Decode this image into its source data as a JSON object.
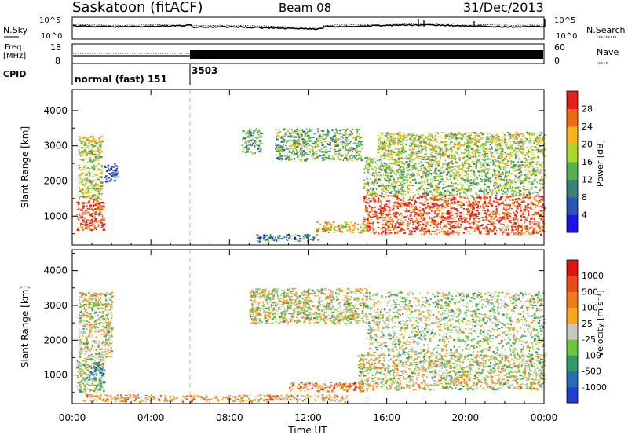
{
  "header": {
    "station": "Saskatoon (fitACF)",
    "beam": "Beam 08",
    "date": "31/Dec/2013"
  },
  "top_panels": {
    "nsky_label": "N.Sky",
    "nsky_ticks": [
      "10^5",
      "10^0"
    ],
    "nsearch_label": "N.Search",
    "nsearch_ticks": [
      "10^5",
      "10^0"
    ],
    "freq_label_1": "Freq.",
    "freq_label_2": "[MHz]",
    "freq_ticks": [
      "18",
      "8"
    ],
    "nave_label": "Nave",
    "nave_ticks": [
      "60",
      "0"
    ],
    "cpid_label": "CPID",
    "cpid_segments": [
      {
        "label": "normal (fast) 151",
        "start_hour": 0
      },
      {
        "label": "3503",
        "start_hour": 6
      }
    ]
  },
  "chart_data": [
    {
      "type": "heatmap",
      "name": "power",
      "ylabel": "Slant Range [km]",
      "xlabel": "Time UT",
      "x_ticks": [
        "00:00",
        "04:00",
        "08:00",
        "12:00",
        "16:00",
        "20:00",
        "00:00"
      ],
      "xlim_hours": [
        0,
        24
      ],
      "y_ticks": [
        "1000",
        "2000",
        "3000",
        "4000"
      ],
      "ylim_km": [
        180,
        4600
      ],
      "colorbar_label": "Power [dB]",
      "colorbar_ticks": [
        "4",
        "8",
        "12",
        "16",
        "20",
        "24",
        "28"
      ],
      "colorbar_colors": [
        "#1a14e8",
        "#2a55b0",
        "#3f7f7a",
        "#55ae4f",
        "#a8d82e",
        "#f7b31c",
        "#f06a14",
        "#e61e1e"
      ],
      "regions": [
        {
          "t": [
            0.2,
            1.6
          ],
          "r": [
            600,
            1500
          ],
          "level": 0.92
        },
        {
          "t": [
            0.3,
            1.5
          ],
          "r": [
            1500,
            3300
          ],
          "level": 0.55
        },
        {
          "t": [
            1.6,
            2.3
          ],
          "r": [
            2000,
            2500
          ],
          "level": 0.2
        },
        {
          "t": [
            8.6,
            9.6
          ],
          "r": [
            2800,
            3500
          ],
          "level": 0.4
        },
        {
          "t": [
            10.3,
            14.7
          ],
          "r": [
            2600,
            3500
          ],
          "level": 0.45
        },
        {
          "t": [
            9.3,
            12.5
          ],
          "r": [
            300,
            500
          ],
          "level": 0.3
        },
        {
          "t": [
            12.3,
            15.0
          ],
          "r": [
            550,
            850
          ],
          "level": 0.65
        },
        {
          "t": [
            14.8,
            24.0
          ],
          "r": [
            500,
            1600
          ],
          "level": 0.9
        },
        {
          "t": [
            14.8,
            24.0
          ],
          "r": [
            1600,
            2700
          ],
          "level": 0.5
        },
        {
          "t": [
            15.5,
            24.0
          ],
          "r": [
            2700,
            3400
          ],
          "level": 0.55
        }
      ]
    },
    {
      "type": "heatmap",
      "name": "velocity",
      "ylabel": "Slant Range [km]",
      "xlabel": "Time UT",
      "x_ticks": [
        "00:00",
        "04:00",
        "08:00",
        "12:00",
        "16:00",
        "20:00",
        "00:00"
      ],
      "xlim_hours": [
        0,
        24
      ],
      "y_ticks": [
        "1000",
        "2000",
        "3000",
        "4000"
      ],
      "ylim_km": [
        180,
        4600
      ],
      "colorbar_label": "Velocity [m s⁻¹]",
      "colorbar_ticks": [
        "1000",
        "500",
        "100",
        "25",
        "-25",
        "-100",
        "-500",
        "-1000"
      ],
      "colorbar_colors": [
        "#2540cc",
        "#2b6db4",
        "#2f9a6a",
        "#6cc63a",
        "#c8c8c0",
        "#f5a623",
        "#f07a18",
        "#e64c14",
        "#e01414"
      ],
      "regions": [
        {
          "t": [
            0.2,
            1.6
          ],
          "r": [
            500,
            1500
          ],
          "level": 0.45
        },
        {
          "t": [
            0.8,
            1.6
          ],
          "r": [
            800,
            1400
          ],
          "level": 0.3
        },
        {
          "t": [
            0.3,
            2.0
          ],
          "r": [
            1500,
            3400
          ],
          "level": 0.5
        },
        {
          "t": [
            9.0,
            15.0
          ],
          "r": [
            2500,
            3500
          ],
          "level": 0.5
        },
        {
          "t": [
            11.0,
            15.0
          ],
          "r": [
            550,
            800
          ],
          "level": 0.75
        },
        {
          "t": [
            0.5,
            14.0
          ],
          "r": [
            250,
            450
          ],
          "level": 0.65
        },
        {
          "t": [
            14.5,
            24.0
          ],
          "r": [
            600,
            1600
          ],
          "level": 0.5
        },
        {
          "t": [
            15.0,
            24.0
          ],
          "r": [
            1600,
            3400
          ],
          "level": 0.45
        }
      ]
    }
  ]
}
